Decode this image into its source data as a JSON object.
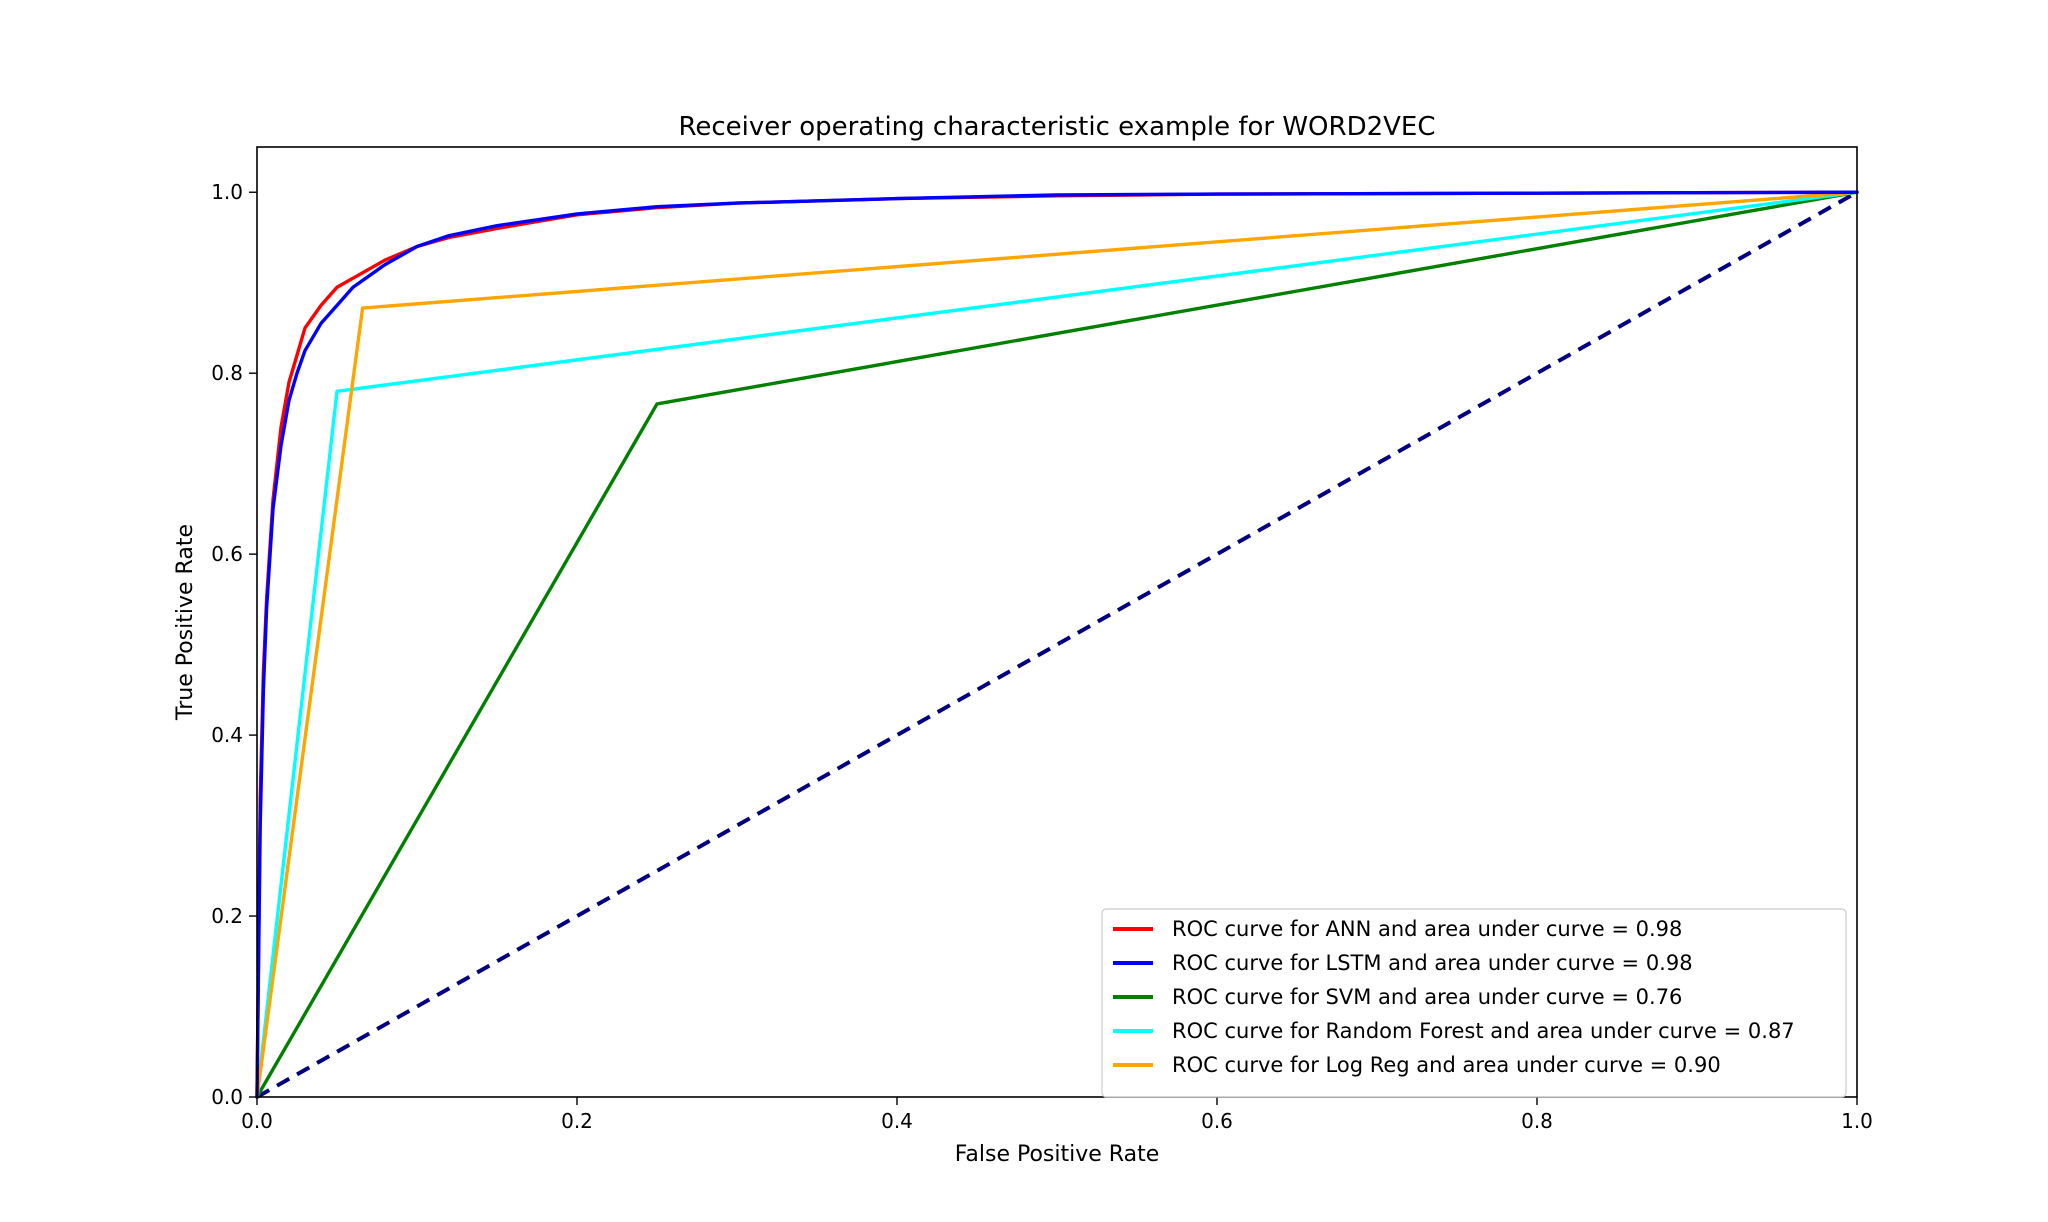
{
  "chart_data": {
    "type": "line",
    "title": "Receiver operating characteristic example for WORD2VEC",
    "xlabel": "False Positive Rate",
    "ylabel": "True Positive Rate",
    "xlim": [
      0.0,
      1.0
    ],
    "ylim": [
      0.0,
      1.05
    ],
    "x_ticks": [
      "0.0",
      "0.2",
      "0.4",
      "0.6",
      "0.8",
      "1.0"
    ],
    "y_ticks": [
      "0.0",
      "0.2",
      "0.4",
      "0.6",
      "0.8",
      "1.0"
    ],
    "grid": false,
    "legend_position": "bottom-right",
    "series": [
      {
        "name": "ROC curve for ANN and area under curve = 0.98",
        "color": "#ff0000",
        "x": [
          0,
          0.002,
          0.004,
          0.006,
          0.01,
          0.015,
          0.02,
          0.025,
          0.03,
          0.04,
          0.05,
          0.06,
          0.08,
          0.1,
          0.12,
          0.15,
          0.2,
          0.25,
          0.3,
          0.4,
          0.5,
          0.6,
          0.8,
          1.0
        ],
        "y": [
          0,
          0.33,
          0.47,
          0.55,
          0.66,
          0.74,
          0.79,
          0.82,
          0.85,
          0.875,
          0.895,
          0.905,
          0.925,
          0.94,
          0.95,
          0.96,
          0.975,
          0.983,
          0.988,
          0.993,
          0.996,
          0.998,
          0.999,
          1.0
        ]
      },
      {
        "name": "ROC curve for LSTM and area under curve = 0.98",
        "color": "#0000ff",
        "x": [
          0,
          0.002,
          0.004,
          0.006,
          0.01,
          0.015,
          0.02,
          0.025,
          0.03,
          0.04,
          0.05,
          0.06,
          0.08,
          0.1,
          0.12,
          0.15,
          0.2,
          0.25,
          0.3,
          0.4,
          0.5,
          0.6,
          0.8,
          1.0
        ],
        "y": [
          0,
          0.3,
          0.45,
          0.54,
          0.65,
          0.72,
          0.77,
          0.8,
          0.825,
          0.855,
          0.875,
          0.895,
          0.92,
          0.94,
          0.952,
          0.963,
          0.976,
          0.984,
          0.988,
          0.993,
          0.997,
          0.998,
          0.999,
          1.0
        ]
      },
      {
        "name": "ROC curve for SVM and area under curve = 0.76",
        "color": "#008000",
        "x": [
          0,
          0.25,
          1.0
        ],
        "y": [
          0,
          0.766,
          1.0
        ]
      },
      {
        "name": "ROC curve for Random Forest and area under curve = 0.87",
        "color": "#00ffff",
        "x": [
          0,
          0.05,
          1.0
        ],
        "y": [
          0,
          0.78,
          1.0
        ]
      },
      {
        "name": "ROC curve for Log Reg and area under curve = 0.90",
        "color": "#ffa500",
        "x": [
          0,
          0.066,
          1.0
        ],
        "y": [
          0,
          0.872,
          1.0
        ]
      }
    ],
    "reference_line": {
      "color": "#000080",
      "x": [
        0,
        1.0
      ],
      "y": [
        0,
        1.0
      ],
      "style": "dashed"
    }
  }
}
